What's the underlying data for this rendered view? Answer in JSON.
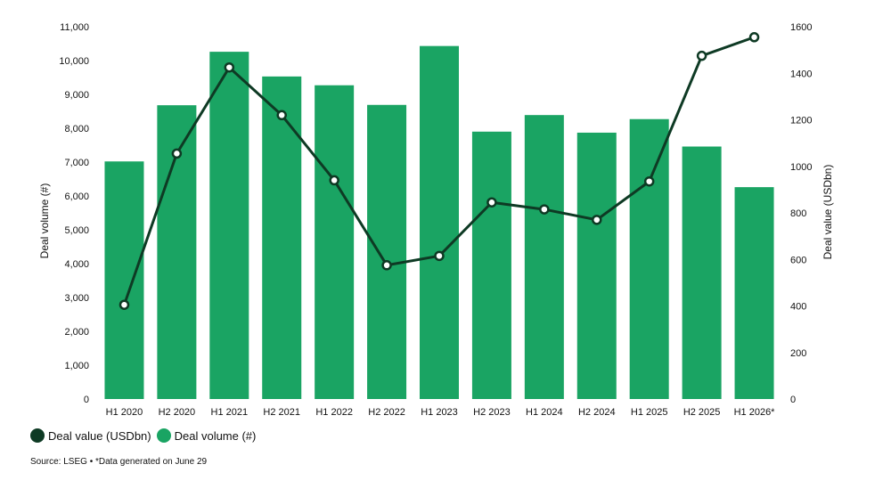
{
  "chart_data": {
    "type": "bar",
    "categories": [
      "H1 2020",
      "H2 2020",
      "H1 2021",
      "H2 2021",
      "H1 2022",
      "H2 2022",
      "H1 2023",
      "H2 2023",
      "H1 2024",
      "H2 2024",
      "H1 2025",
      "H2 2025",
      "H1 2026*"
    ],
    "series": [
      {
        "name": "Deal volume (#)",
        "type": "bar",
        "axis": "left",
        "color": "#1aa463",
        "values": [
          7020,
          8680,
          10260,
          9530,
          9270,
          8690,
          10430,
          7900,
          8390,
          7870,
          8270,
          7460,
          6260
        ]
      },
      {
        "name": "Deal value (USDbn)",
        "type": "line",
        "axis": "right",
        "color": "#0e3a24",
        "values": [
          405,
          1055,
          1425,
          1220,
          940,
          575,
          615,
          845,
          815,
          770,
          935,
          1475,
          1555
        ]
      }
    ],
    "ylabel": "Deal volume (#)",
    "ylabel_right": "Deal value (USDbn)",
    "ylim": [
      0,
      11000
    ],
    "ylim_right": [
      0,
      1600
    ],
    "yticks": [
      0,
      1000,
      2000,
      3000,
      4000,
      5000,
      6000,
      7000,
      8000,
      9000,
      10000,
      11000
    ],
    "yticks_labels": [
      "0",
      "1,000",
      "2,000",
      "3,000",
      "4,000",
      "5,000",
      "6,000",
      "7,000",
      "8,000",
      "9,000",
      "10,000",
      "11,000"
    ],
    "yticks_right": [
      0,
      200,
      400,
      600,
      800,
      1000,
      1200,
      1400,
      1600
    ],
    "yticks_right_labels": [
      "0",
      "200",
      "400",
      "600",
      "800",
      "1000",
      "1200",
      "1400",
      "1600"
    ],
    "grid": false,
    "legend_position": "bottom-left"
  },
  "legend": {
    "line_label": "Deal value (USDbn)",
    "bar_label": "Deal volume (#)"
  },
  "footer": {
    "source": "Source: LSEG • *Data generated on June 29"
  }
}
